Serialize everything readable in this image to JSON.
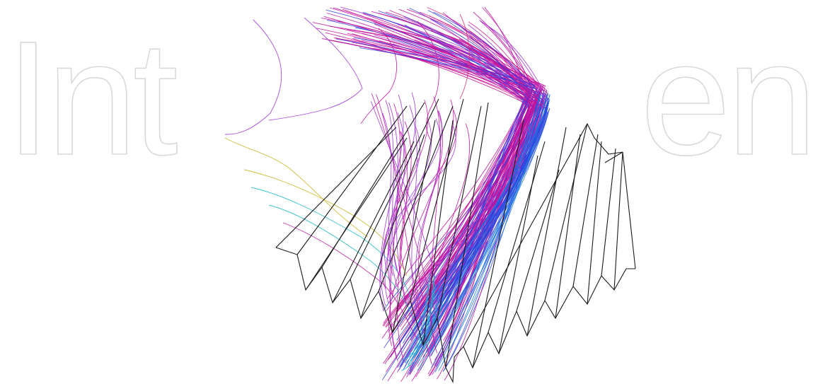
{
  "watermark": {
    "left_text": "Int",
    "right_text": "en"
  },
  "figure": {
    "fin_color": "#1a1a1a",
    "stream_colors": [
      "#c0119e",
      "#d81b8a",
      "#9b2ed6",
      "#2f3fe0",
      "#1e7ae0",
      "#18b7c8",
      "#c9b21c",
      "#e12d6c"
    ],
    "icons": [
      "finned-tube-surface",
      "streamlines"
    ]
  }
}
